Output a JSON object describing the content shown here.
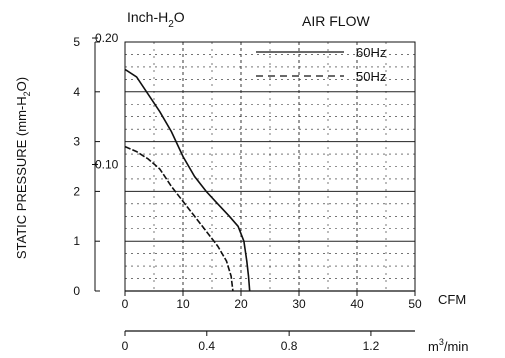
{
  "chart_data": {
    "type": "line",
    "title": "AIR FLOW",
    "xlabel": "CFM",
    "ylabel": "STATIC PRESSURE (mm-H2O)",
    "ylabel_parts": {
      "main": "STATIC PRESSURE (mm-H",
      "sub": "2",
      "tail": "O)"
    },
    "secondary_y_label": {
      "main": "Inch-H",
      "sub": "2",
      "tail": "O"
    },
    "secondary_x_label": {
      "main": "m",
      "sup": "3",
      "tail": "/min"
    },
    "xlim": [
      0,
      50
    ],
    "ylim": [
      0,
      5
    ],
    "x_ticks": [
      0,
      10,
      20,
      30,
      40,
      50
    ],
    "y_ticks": [
      0,
      1,
      2,
      3,
      4,
      5
    ],
    "secondary_y_ticks": [
      {
        "label": "0.20",
        "value": 5.08
      },
      {
        "label": "0.10",
        "value": 2.54
      }
    ],
    "secondary_x_ticks": [
      {
        "label": "0",
        "value": 0
      },
      {
        "label": "0.4",
        "value": 14.1
      },
      {
        "label": "0.8",
        "value": 28.3
      },
      {
        "label": "1.2",
        "value": 42.4
      }
    ],
    "grid": true,
    "legend_position": "top-right",
    "series": [
      {
        "name": "60Hz",
        "style": "solid",
        "points": [
          [
            0,
            4.45
          ],
          [
            2,
            4.3
          ],
          [
            4,
            3.95
          ],
          [
            6,
            3.6
          ],
          [
            8,
            3.2
          ],
          [
            10,
            2.7
          ],
          [
            12,
            2.3
          ],
          [
            14,
            2.0
          ],
          [
            16,
            1.75
          ],
          [
            18,
            1.5
          ],
          [
            19.5,
            1.3
          ],
          [
            20.5,
            1.0
          ],
          [
            21,
            0.6
          ],
          [
            21.3,
            0.3
          ],
          [
            21.5,
            0
          ]
        ]
      },
      {
        "name": "50Hz",
        "style": "dashed",
        "points": [
          [
            0,
            2.9
          ],
          [
            2,
            2.8
          ],
          [
            4,
            2.65
          ],
          [
            6,
            2.45
          ],
          [
            8,
            2.1
          ],
          [
            10,
            1.8
          ],
          [
            12,
            1.5
          ],
          [
            14,
            1.2
          ],
          [
            16,
            0.9
          ],
          [
            17.5,
            0.6
          ],
          [
            18.3,
            0.3
          ],
          [
            18.6,
            0
          ]
        ]
      }
    ]
  }
}
